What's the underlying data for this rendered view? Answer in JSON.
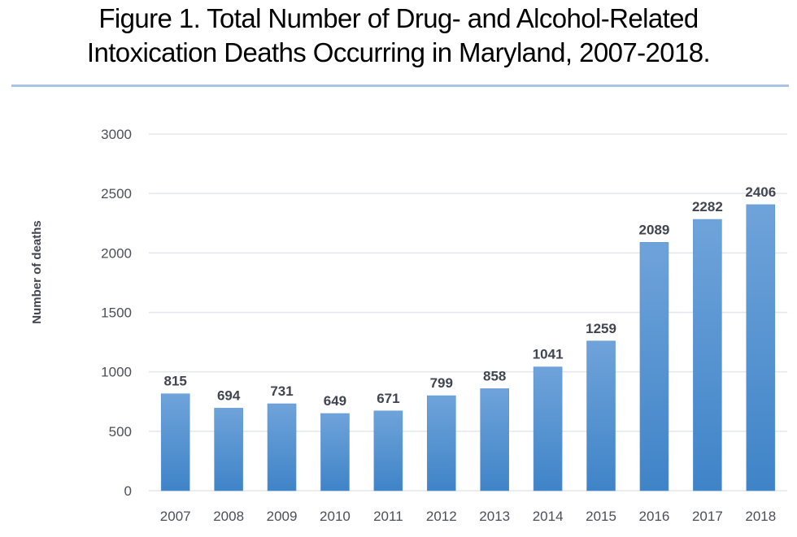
{
  "chart_data": {
    "type": "bar",
    "title_line1": "Figure 1.  Total Number of Drug- and Alcohol-Related",
    "title_line2": "Intoxication Deaths Occurring in Maryland, 2007-2018.",
    "title": "Figure 1.  Total Number of Drug- and Alcohol-Related Intoxication Deaths Occurring in Maryland, 2007-2018.",
    "xlabel": "",
    "ylabel": "Number of deaths",
    "categories": [
      "2007",
      "2008",
      "2009",
      "2010",
      "2011",
      "2012",
      "2013",
      "2014",
      "2015",
      "2016",
      "2017",
      "2018"
    ],
    "values": [
      815,
      694,
      731,
      649,
      671,
      799,
      858,
      1041,
      1259,
      2089,
      2282,
      2406
    ],
    "ylim": [
      0,
      3000
    ],
    "yticks": [
      0,
      500,
      1000,
      1500,
      2000,
      2500,
      3000
    ],
    "grid": true,
    "legend": "none",
    "data_labels": true,
    "colors": {
      "bar_top": "#6fa3da",
      "bar_bottom": "#3f84c8",
      "gridline": "#e3e6ec",
      "title_rule": "#a9c4e4"
    }
  }
}
